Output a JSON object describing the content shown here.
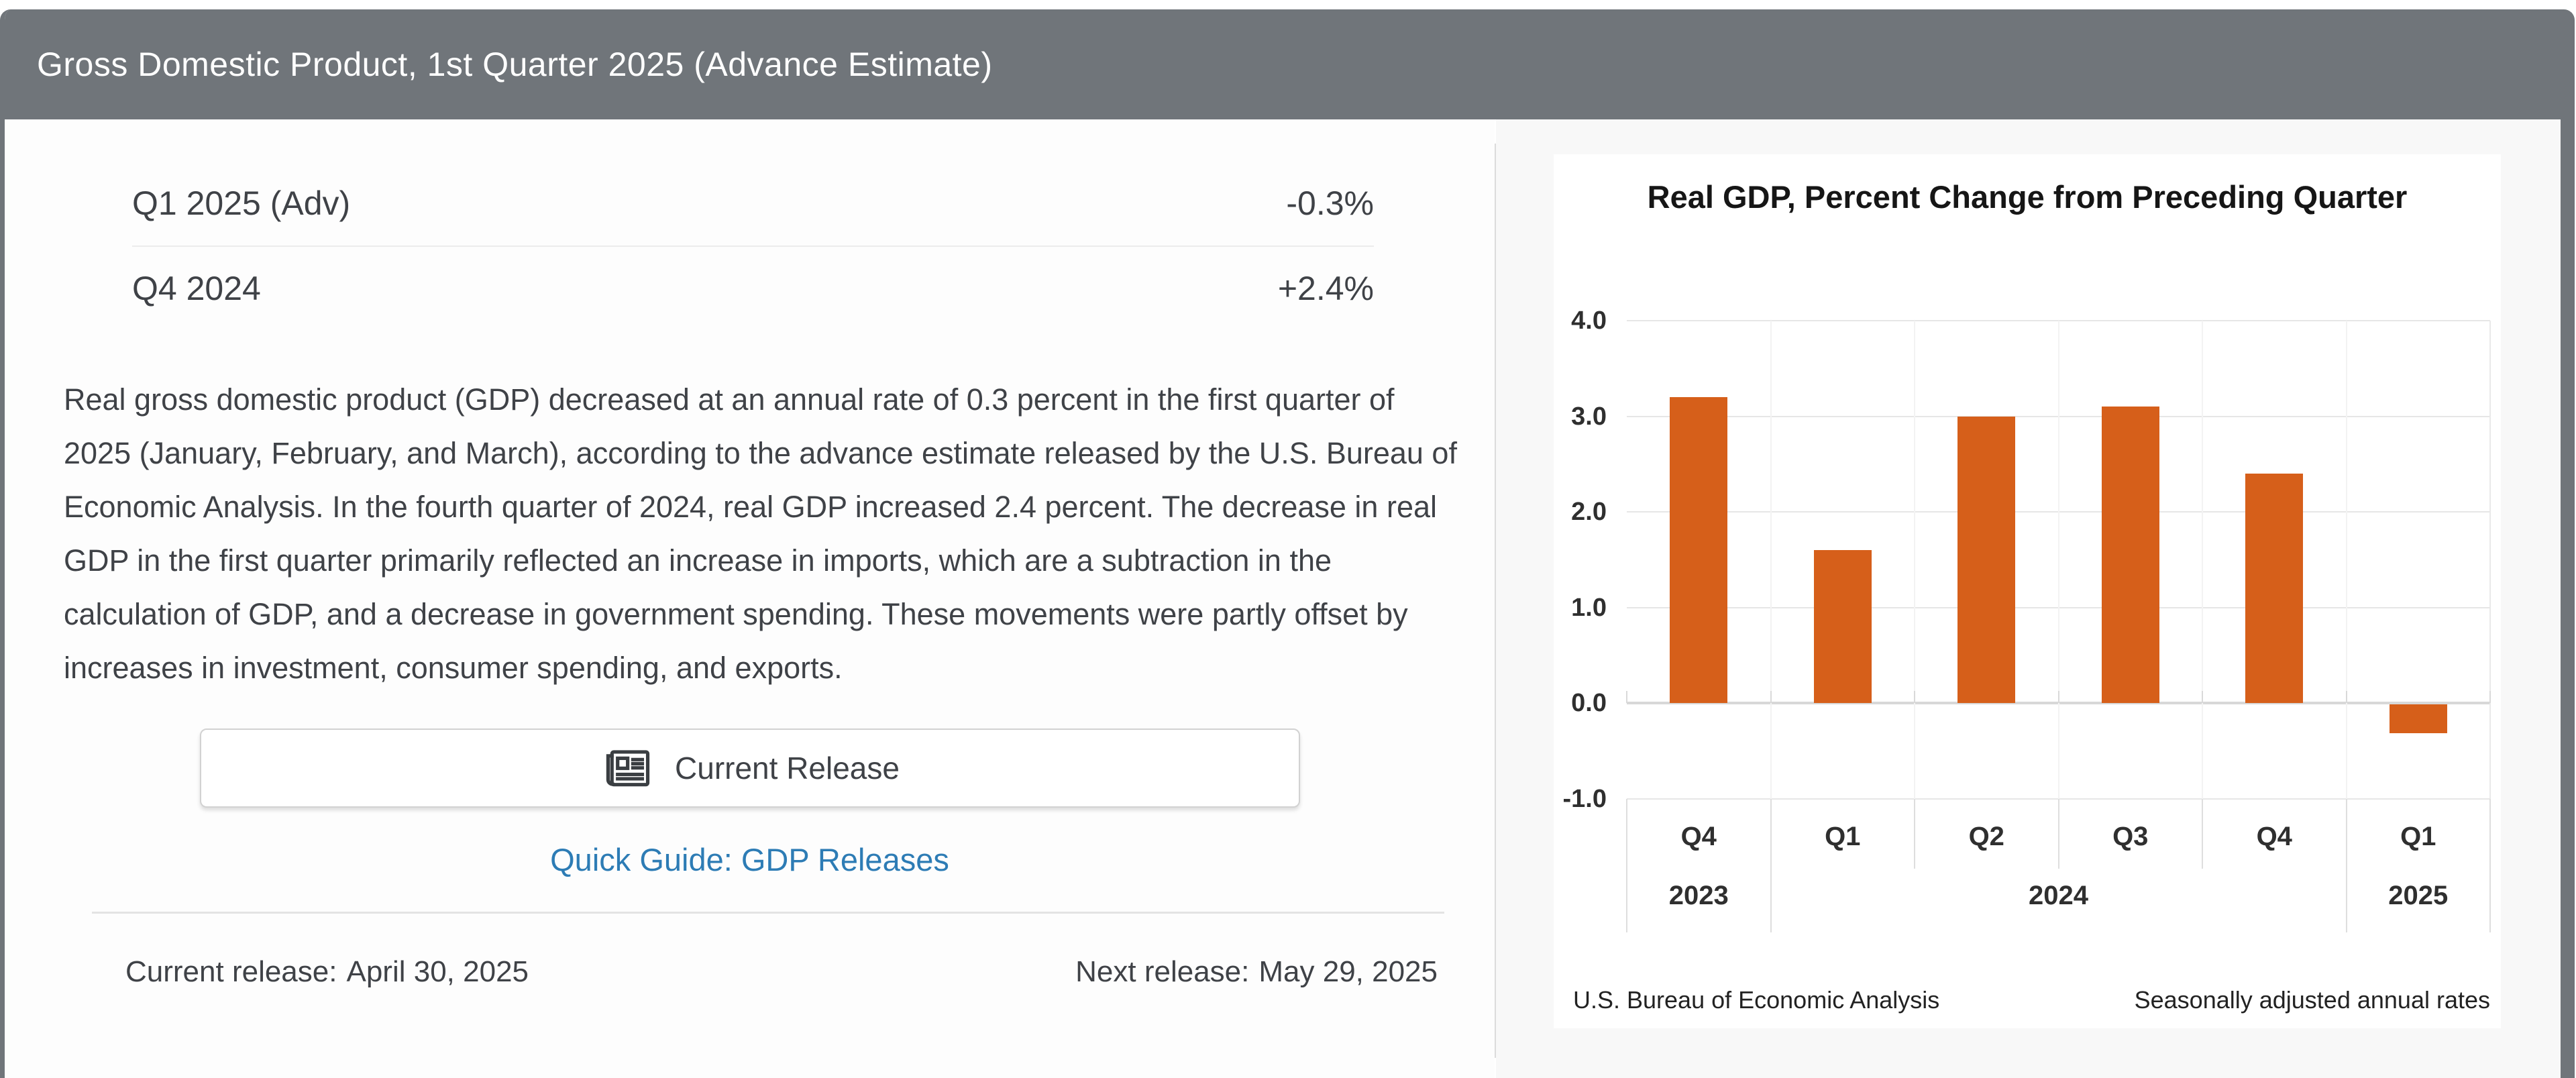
{
  "header": {
    "title": "Gross Domestic Product, 1st Quarter 2025 (Advance Estimate)"
  },
  "stats": {
    "rows": [
      {
        "label": "Q1 2025 (Adv)",
        "value": "-0.3%"
      },
      {
        "label": "Q4 2024",
        "value": "+2.4%"
      }
    ]
  },
  "summary": "Real gross domestic product (GDP) decreased at an annual rate of 0.3 percent in the first quarter of 2025 (January, February, and March), according to the advance estimate released by the U.S. Bureau of Economic Analysis. In the fourth quarter of 2024, real GDP increased 2.4 percent. The decrease in real GDP in the first quarter primarily reflected an increase in imports, which are a subtraction in the calculation of GDP, and a decrease in government spending. These movements were partly offset by increases in investment, consumer spending, and exports.",
  "actions": {
    "current_release_label": "Current Release",
    "quick_guide_label": "Quick Guide: GDP Releases"
  },
  "releases": {
    "current_label": "Current release:",
    "current_date": "April 30, 2025",
    "next_label": "Next release:",
    "next_date": "May 29, 2025"
  },
  "colors": {
    "header_gray": "#70757a",
    "link_blue": "#2d7cb5",
    "bar_orange": "#d65f1a"
  },
  "chart_data": {
    "type": "bar",
    "title": "Real GDP, Percent Change from Preceding Quarter",
    "categories": [
      "Q4",
      "Q1",
      "Q2",
      "Q3",
      "Q4",
      "Q1"
    ],
    "year_groups": [
      {
        "label": "2023",
        "span": [
          0,
          1
        ]
      },
      {
        "label": "2024",
        "span": [
          1,
          5
        ]
      },
      {
        "label": "2025",
        "span": [
          5,
          6
        ]
      }
    ],
    "values": [
      3.2,
      1.6,
      3.0,
      3.1,
      2.4,
      -0.3
    ],
    "ylim": [
      -1.0,
      4.0
    ],
    "yticks": [
      4.0,
      3.0,
      2.0,
      1.0,
      0.0,
      -1.0
    ],
    "bar_color": "#d65f1a",
    "grid": true,
    "legend": false,
    "source_note": "U.S. Bureau of Economic Analysis",
    "rate_note": "Seasonally adjusted annual rates"
  }
}
